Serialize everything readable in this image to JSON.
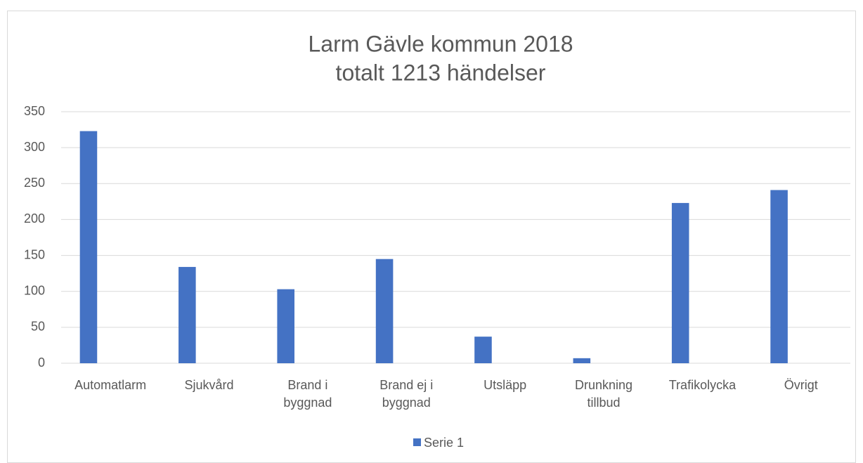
{
  "chart_data": {
    "type": "bar",
    "title": "Larm Gävle kommun 2018",
    "subtitle": "totalt 1213 händelser",
    "categories": [
      "Automatlarm",
      "Sjukvård",
      "Brand i byggnad",
      "Brand ej i byggnad",
      "Utsläpp",
      "Drunkning tillbud",
      "Trafikolycka",
      "Övrigt"
    ],
    "series": [
      {
        "name": "Serie 1",
        "color": "#4472c4",
        "values": [
          323,
          134,
          103,
          145,
          37,
          7,
          223,
          241
        ]
      }
    ],
    "ylim": [
      0,
      350
    ],
    "yticks": [
      0,
      50,
      100,
      150,
      200,
      250,
      300,
      350
    ],
    "grid": true,
    "legend": "bottom"
  }
}
